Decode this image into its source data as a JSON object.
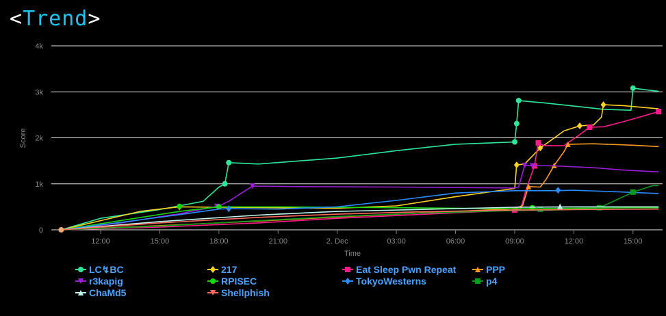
{
  "header": {
    "open": "<",
    "word": "Trend",
    "close": ">"
  },
  "chart_data": {
    "type": "line",
    "xlabel": "Time",
    "ylabel": "Score",
    "ylim": [
      0,
      4000
    ],
    "xlim": [
      9.5,
      40.5
    ],
    "x_unit": "hours from 1 Dec 00:00",
    "x_ticks": [
      {
        "x": 12,
        "label": "12:00"
      },
      {
        "x": 15,
        "label": "15:00"
      },
      {
        "x": 18,
        "label": "18:00"
      },
      {
        "x": 21,
        "label": "21:00"
      },
      {
        "x": 24,
        "label": "2. Dec"
      },
      {
        "x": 27,
        "label": "03:00"
      },
      {
        "x": 30,
        "label": "06:00"
      },
      {
        "x": 33,
        "label": "09:00"
      },
      {
        "x": 36,
        "label": "12:00"
      },
      {
        "x": 39,
        "label": "15:00"
      }
    ],
    "y_ticks": [
      {
        "y": 0,
        "label": "0"
      },
      {
        "y": 1000,
        "label": "1k"
      },
      {
        "y": 2000,
        "label": "2k"
      },
      {
        "y": 3000,
        "label": "3k"
      },
      {
        "y": 4000,
        "label": "4k"
      }
    ],
    "grid": true,
    "legend": "bottom",
    "series": [
      {
        "name": "LC↯BC",
        "color": "#2ee89a",
        "marker": "circle",
        "points": [
          [
            10,
            0
          ],
          [
            12,
            250
          ],
          [
            15,
            440
          ],
          [
            17.2,
            620
          ],
          [
            18,
            930
          ],
          [
            18.3,
            1000
          ],
          [
            18.5,
            1460
          ],
          [
            20,
            1430
          ],
          [
            24,
            1560
          ],
          [
            27,
            1720
          ],
          [
            30,
            1860
          ],
          [
            33,
            1910
          ],
          [
            33.1,
            2310
          ],
          [
            33.2,
            2810
          ],
          [
            34.5,
            2760
          ],
          [
            36,
            2690
          ],
          [
            37.5,
            2620
          ],
          [
            38.9,
            2600
          ],
          [
            39,
            3080
          ],
          [
            40.3,
            3010
          ]
        ],
        "markers": [
          [
            18.3,
            1000
          ],
          [
            18.5,
            1460
          ],
          [
            33,
            1910
          ],
          [
            33.1,
            2310
          ],
          [
            33.2,
            2810
          ],
          [
            39,
            3080
          ]
        ]
      },
      {
        "name": "217",
        "color": "#ffd21f",
        "marker": "diamond",
        "points": [
          [
            10,
            0
          ],
          [
            12,
            200
          ],
          [
            14,
            400
          ],
          [
            16,
            500
          ],
          [
            18,
            490
          ],
          [
            21,
            480
          ],
          [
            24,
            470
          ],
          [
            27,
            520
          ],
          [
            30,
            720
          ],
          [
            33,
            900
          ],
          [
            33.1,
            1410
          ],
          [
            33.5,
            1430
          ],
          [
            34.3,
            1780
          ],
          [
            35.5,
            2150
          ],
          [
            36.3,
            2260
          ],
          [
            37,
            2280
          ],
          [
            37.4,
            2450
          ],
          [
            37.5,
            2720
          ],
          [
            38.5,
            2700
          ],
          [
            40.3,
            2630
          ]
        ],
        "markers": [
          [
            16,
            500
          ],
          [
            33.1,
            1410
          ],
          [
            34.3,
            1780
          ],
          [
            36.3,
            2260
          ],
          [
            37.5,
            2720
          ]
        ]
      },
      {
        "name": "Eat Sleep Pwn Repeat",
        "color": "#ff1a8c",
        "marker": "square",
        "points": [
          [
            10,
            0
          ],
          [
            15,
            60
          ],
          [
            20,
            150
          ],
          [
            24,
            250
          ],
          [
            28,
            330
          ],
          [
            33,
            430
          ],
          [
            33.3,
            450
          ],
          [
            33.6,
            900
          ],
          [
            34,
            1390
          ],
          [
            34.2,
            1890
          ],
          [
            34.5,
            1830
          ],
          [
            35.5,
            1830
          ],
          [
            36.3,
            2070
          ],
          [
            36.8,
            2230
          ],
          [
            37.5,
            2240
          ],
          [
            38.5,
            2350
          ],
          [
            40.3,
            2570
          ]
        ],
        "markers": [
          [
            33,
            430
          ],
          [
            34,
            1390
          ],
          [
            34.2,
            1890
          ],
          [
            36.8,
            2230
          ],
          [
            40.3,
            2570
          ]
        ]
      },
      {
        "name": "PPP",
        "color": "#ff9a1f",
        "marker": "triangle",
        "points": [
          [
            10,
            0
          ],
          [
            15,
            90
          ],
          [
            20,
            190
          ],
          [
            24,
            280
          ],
          [
            28,
            360
          ],
          [
            33,
            460
          ],
          [
            33.4,
            530
          ],
          [
            33.7,
            940
          ],
          [
            34.3,
            930
          ],
          [
            34.6,
            1100
          ],
          [
            35,
            1400
          ],
          [
            35.5,
            1700
          ],
          [
            35.7,
            1860
          ],
          [
            37,
            1870
          ],
          [
            39,
            1840
          ],
          [
            40.3,
            1810
          ]
        ],
        "markers": [
          [
            33.7,
            940
          ],
          [
            35,
            1400
          ],
          [
            35.7,
            1860
          ]
        ]
      },
      {
        "name": "r3kapig",
        "color": "#9b1fd6",
        "marker": "triangle-down",
        "points": [
          [
            10,
            0
          ],
          [
            13,
            150
          ],
          [
            16,
            350
          ],
          [
            18,
            520
          ],
          [
            18.5,
            620
          ],
          [
            19,
            760
          ],
          [
            19.7,
            950
          ],
          [
            22,
            940
          ],
          [
            27,
            930
          ],
          [
            33,
            910
          ],
          [
            33.2,
            930
          ],
          [
            33.5,
            1400
          ],
          [
            35,
            1390
          ],
          [
            37,
            1350
          ],
          [
            38.5,
            1300
          ],
          [
            40.3,
            1260
          ]
        ],
        "markers": [
          [
            17.9,
            510
          ],
          [
            19.7,
            950
          ],
          [
            33.5,
            1400
          ],
          [
            33.9,
            1390
          ]
        ]
      },
      {
        "name": "RPISEC",
        "color": "#19d60f",
        "marker": "circle",
        "points": [
          [
            10,
            0
          ],
          [
            13,
            200
          ],
          [
            16,
            400
          ],
          [
            18,
            500
          ],
          [
            21,
            500
          ],
          [
            27,
            480
          ],
          [
            33,
            460
          ],
          [
            36,
            470
          ],
          [
            39,
            480
          ],
          [
            40.3,
            480
          ]
        ],
        "markers": [
          [
            16,
            510
          ],
          [
            18,
            500
          ],
          [
            33.9,
            480
          ]
        ]
      },
      {
        "name": "TokyoWesterns",
        "color": "#2a8cff",
        "marker": "diamond",
        "points": [
          [
            10,
            0
          ],
          [
            13,
            160
          ],
          [
            16,
            330
          ],
          [
            18,
            450
          ],
          [
            18.5,
            460
          ],
          [
            21,
            450
          ],
          [
            24,
            500
          ],
          [
            27,
            640
          ],
          [
            30,
            800
          ],
          [
            33,
            850
          ],
          [
            35,
            850
          ],
          [
            36,
            860
          ],
          [
            38,
            830
          ],
          [
            40.3,
            790
          ]
        ],
        "markers": [
          [
            18.5,
            460
          ],
          [
            35.2,
            860
          ]
        ]
      },
      {
        "name": "p4",
        "color": "#0a9a1a",
        "marker": "square",
        "points": [
          [
            10,
            0
          ],
          [
            15,
            80
          ],
          [
            20,
            200
          ],
          [
            24,
            290
          ],
          [
            28,
            360
          ],
          [
            33,
            420
          ],
          [
            35,
            430
          ],
          [
            37.2,
            460
          ],
          [
            38,
            620
          ],
          [
            39,
            820
          ],
          [
            40,
            960
          ],
          [
            40.3,
            960
          ]
        ],
        "markers": [
          [
            34.3,
            450
          ],
          [
            37.3,
            480
          ],
          [
            39,
            820
          ]
        ]
      },
      {
        "name": "ChaMd5",
        "color": "#bff7f0",
        "marker": "triangle",
        "points": [
          [
            10,
            0
          ],
          [
            15,
            180
          ],
          [
            20,
            320
          ],
          [
            24,
            400
          ],
          [
            28,
            440
          ],
          [
            33,
            490
          ],
          [
            36,
            500
          ],
          [
            40.3,
            500
          ]
        ],
        "markers": [
          [
            35.3,
            510
          ]
        ]
      },
      {
        "name": "Shellphish",
        "color": "#ff6a5c",
        "marker": "triangle-down",
        "points": [
          [
            10,
            0
          ],
          [
            15,
            150
          ],
          [
            20,
            270
          ],
          [
            24,
            340
          ],
          [
            28,
            390
          ],
          [
            33,
            430
          ],
          [
            36,
            440
          ],
          [
            40.3,
            450
          ]
        ],
        "markers": []
      }
    ]
  }
}
